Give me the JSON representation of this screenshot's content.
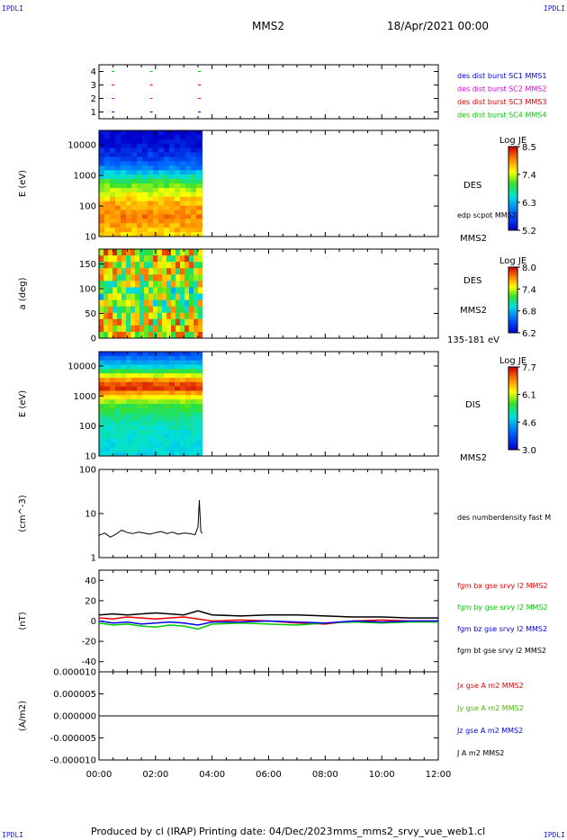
{
  "header": {
    "corner_tl": "IPDLI",
    "corner_tr": "IPDLI",
    "corner_bl": "IPDLI",
    "corner_br": "IPDLI",
    "title": "MMS2",
    "date": "18/Apr/2021 00:00"
  },
  "footer": {
    "produced_by": "Produced by cl (IRAP)",
    "printing_date": "Printing date: 04/Dec/2023",
    "filename": "mms_mms2_srvy_vue_web1.cl"
  },
  "time_axis": {
    "ticks": [
      "00:00",
      "02:00",
      "04:00",
      "06:00",
      "08:00",
      "10:00",
      "12:00"
    ],
    "range_hours": [
      0,
      12
    ]
  },
  "colors": {
    "mms1": "#0000dd",
    "mms2": "#dd00dd",
    "mms3": "#dd0000",
    "mms4": "#00cc00",
    "bx": "#ee0000",
    "by": "#00cc00",
    "bz": "#0000ee",
    "bt": "#000000",
    "jy": "#44bb00"
  },
  "chart_data": [
    {
      "type": "scatter",
      "panel": "burst-availability",
      "ylabel": "",
      "yticks": [
        "1",
        "2",
        "3",
        "4"
      ],
      "ylim": [
        0.5,
        4.5
      ],
      "markers_hours": [
        0.5,
        1.85,
        3.55
      ],
      "series": [
        {
          "name": "des dist burst SC1 MMS1",
          "level": 1,
          "color": "#0000dd"
        },
        {
          "name": "des dist burst SC2 MMS2",
          "level": 2,
          "color": "#dd00dd"
        },
        {
          "name": "des dist burst SC3 MMS3",
          "level": 3,
          "color": "#dd0000"
        },
        {
          "name": "des dist burst SC4 MMS4",
          "level": 4,
          "color": "#00cc00"
        }
      ]
    },
    {
      "type": "heatmap",
      "panel": "des-energy",
      "ylabel": "E (eV)",
      "yscale": "log",
      "ylim": [
        10,
        30000
      ],
      "yticks": [
        "10",
        "100",
        "1000",
        "10000"
      ],
      "data_x_range_hours": [
        0,
        3.65
      ],
      "right_labels": [
        "DES",
        "edp scpot MMS2",
        "MMS2"
      ],
      "colorbar": {
        "title": "Log JE",
        "ticks": [
          "8.5",
          "7.4",
          "6.3",
          "5.2"
        ],
        "range": [
          5.2,
          8.5
        ]
      },
      "profile": [
        {
          "e_ev": 10,
          "log_je": 7.6
        },
        {
          "e_ev": 40,
          "log_je": 8.0
        },
        {
          "e_ev": 100,
          "log_je": 7.9
        },
        {
          "e_ev": 300,
          "log_je": 7.4
        },
        {
          "e_ev": 700,
          "log_je": 6.9
        },
        {
          "e_ev": 2000,
          "log_je": 5.9
        },
        {
          "e_ev": 10000,
          "log_je": 5.3
        },
        {
          "e_ev": 30000,
          "log_je": 5.2
        }
      ]
    },
    {
      "type": "heatmap",
      "panel": "des-pitch-angle",
      "ylabel": "a (deg)",
      "ylim": [
        0,
        180
      ],
      "yticks": [
        "0",
        "50",
        "100",
        "150"
      ],
      "data_x_range_hours": [
        0,
        3.65
      ],
      "right_labels": [
        "DES",
        "MMS2",
        "135-181 eV"
      ],
      "colorbar": {
        "title": "Log JE",
        "ticks": [
          "8.0",
          "7.4",
          "6.8",
          "6.2"
        ],
        "range": [
          6.2,
          8.0
        ]
      }
    },
    {
      "type": "heatmap",
      "panel": "dis-energy",
      "ylabel": "E (eV)",
      "yscale": "log",
      "ylim": [
        10,
        30000
      ],
      "yticks": [
        "10",
        "100",
        "1000",
        "10000"
      ],
      "data_x_range_hours": [
        0,
        3.65
      ],
      "right_labels": [
        "DIS",
        "MMS2"
      ],
      "colorbar": {
        "title": "Log JE",
        "ticks": [
          "7.7",
          "6.1",
          "4.6",
          "3.0"
        ],
        "range": [
          3.0,
          7.7
        ]
      },
      "profile": [
        {
          "e_ev": 10,
          "log_je": 4.8
        },
        {
          "e_ev": 100,
          "log_je": 5.0
        },
        {
          "e_ev": 500,
          "log_je": 5.6
        },
        {
          "e_ev": 1200,
          "log_je": 6.8
        },
        {
          "e_ev": 2000,
          "log_je": 7.6
        },
        {
          "e_ev": 3500,
          "log_je": 6.8
        },
        {
          "e_ev": 10000,
          "log_je": 4.7
        },
        {
          "e_ev": 30000,
          "log_je": 3.6
        }
      ]
    },
    {
      "type": "line",
      "panel": "density",
      "ylabel": "(cm^-3)",
      "yscale": "log",
      "ylim": [
        1,
        100
      ],
      "yticks": [
        "1",
        "10",
        "100"
      ],
      "series": [
        {
          "name": "des numberdensity fast M",
          "color": "#000000",
          "x_hours": [
            0.0,
            0.2,
            0.4,
            0.6,
            0.8,
            1.0,
            1.2,
            1.4,
            1.6,
            1.8,
            2.0,
            2.2,
            2.4,
            2.6,
            2.8,
            3.0,
            3.2,
            3.4,
            3.5,
            3.55,
            3.6,
            3.65
          ],
          "values": [
            3.2,
            3.6,
            2.9,
            3.4,
            4.2,
            3.7,
            3.5,
            3.8,
            3.6,
            3.4,
            3.7,
            3.9,
            3.5,
            3.8,
            3.4,
            3.6,
            3.5,
            3.3,
            5.0,
            20.0,
            4.0,
            3.5
          ]
        }
      ]
    },
    {
      "type": "line",
      "panel": "magnetic-field",
      "ylabel": "(nT)",
      "ylim": [
        -50,
        50
      ],
      "yticks": [
        "-40",
        "-20",
        "0",
        "20",
        "40"
      ],
      "series": [
        {
          "name": "fgm bx gse srvy l2 MMS2",
          "color": "#ee0000",
          "x_hours": [
            0,
            0.5,
            1,
            1.5,
            2,
            2.5,
            3,
            3.5,
            4,
            5,
            6,
            7,
            8,
            9,
            10,
            11,
            12
          ],
          "values": [
            3,
            2,
            4,
            3,
            2,
            3,
            4,
            2,
            0,
            1,
            0,
            -2,
            -3,
            0,
            1,
            0,
            0
          ]
        },
        {
          "name": "fgm by gse srvy l2 MMS2",
          "color": "#00cc00",
          "x_hours": [
            0,
            0.5,
            1,
            1.5,
            2,
            2.5,
            3,
            3.5,
            4,
            5,
            6,
            7,
            8,
            9,
            10,
            11,
            12
          ],
          "values": [
            -2,
            -4,
            -3,
            -5,
            -6,
            -4,
            -5,
            -8,
            -3,
            -2,
            -3,
            -4,
            -2,
            -1,
            -2,
            -1,
            -1
          ]
        },
        {
          "name": "fgm bz gse srvy l2 MMS2",
          "color": "#0000ee",
          "x_hours": [
            0,
            0.5,
            1,
            1.5,
            2,
            2.5,
            3,
            3.5,
            4,
            5,
            6,
            7,
            8,
            9,
            10,
            11,
            12
          ],
          "values": [
            0,
            -2,
            -1,
            -3,
            -2,
            -1,
            -2,
            -4,
            -1,
            -1,
            0,
            -1,
            -2,
            0,
            -1,
            0,
            0
          ]
        },
        {
          "name": "fgm bt gse srvy l2 MMS2",
          "color": "#000000",
          "x_hours": [
            0,
            0.5,
            1,
            1.5,
            2,
            2.5,
            3,
            3.5,
            4,
            5,
            6,
            7,
            8,
            9,
            10,
            11,
            12
          ],
          "values": [
            6,
            7,
            6,
            7,
            8,
            7,
            6,
            10,
            6,
            5,
            6,
            6,
            5,
            4,
            4,
            3,
            3
          ]
        }
      ]
    },
    {
      "type": "line",
      "panel": "current-density",
      "ylabel": "(A/m2)",
      "ylim": [
        -1e-05,
        1e-05
      ],
      "yticks": [
        "0.000010",
        "0.000005",
        "0.000000",
        "-0.000005",
        "-0.000010"
      ],
      "series": [
        {
          "name": "Jx gse A m2 MMS2",
          "color": "#ee0000",
          "x_hours": [
            0,
            12
          ],
          "values": [
            0,
            0
          ]
        },
        {
          "name": "Jy gse A m2 MMS2",
          "color": "#44bb00",
          "x_hours": [
            0,
            12
          ],
          "values": [
            0,
            0
          ]
        },
        {
          "name": "Jz gse A m2 MMS2",
          "color": "#0000ee",
          "x_hours": [
            0,
            12
          ],
          "values": [
            0,
            0
          ]
        },
        {
          "name": "J A m2 MMS2",
          "color": "#000000",
          "x_hours": [
            0,
            12
          ],
          "values": [
            0,
            0
          ]
        }
      ]
    }
  ]
}
